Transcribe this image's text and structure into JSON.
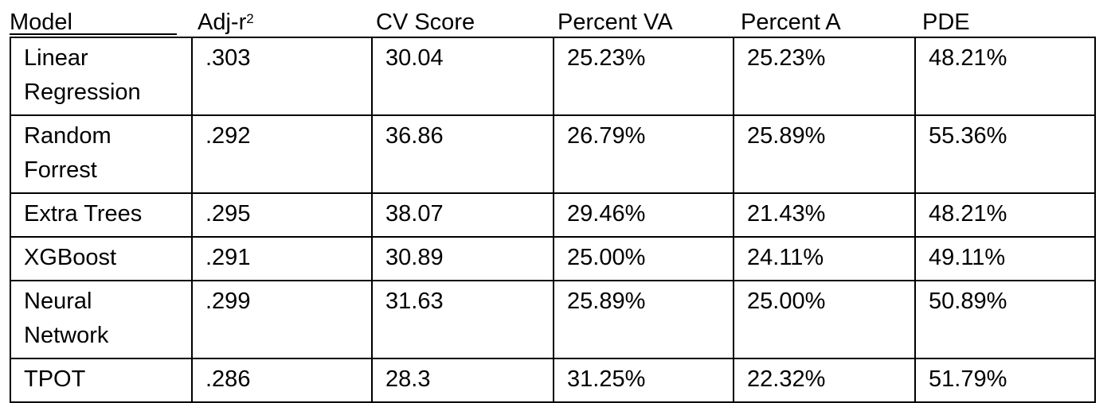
{
  "table": {
    "headers": [
      "Model",
      "Adj-r",
      "CV Score",
      "Percent VA",
      "Percent A",
      "PDE"
    ],
    "header_superscript": "2",
    "rows": [
      {
        "model": [
          "Linear",
          "Regression"
        ],
        "adj_r2": ".303",
        "cv": "30.04",
        "pva": "25.23%",
        "pa": "25.23%",
        "pde": "48.21%"
      },
      {
        "model": [
          "Random",
          "Forrest"
        ],
        "adj_r2": ".292",
        "cv": "36.86",
        "pva": "26.79%",
        "pa": "25.89%",
        "pde": "55.36%"
      },
      {
        "model": [
          "Extra Trees"
        ],
        "adj_r2": ".295",
        "cv": "38.07",
        "pva": "29.46%",
        "pa": "21.43%",
        "pde": "48.21%"
      },
      {
        "model": [
          "XGBoost"
        ],
        "adj_r2": ".291",
        "cv": "30.89",
        "pva": "25.00%",
        "pa": "24.11%",
        "pde": "49.11%"
      },
      {
        "model": [
          "Neural",
          "Network"
        ],
        "adj_r2": ".299",
        "cv": "31.63",
        "pva": "25.89%",
        "pa": "25.00%",
        "pde": "50.89%"
      },
      {
        "model": [
          "TPOT"
        ],
        "adj_r2": ".286",
        "cv": "28.3",
        "pva": "31.25%",
        "pa": "22.32%",
        "pde": "51.79%"
      }
    ]
  }
}
